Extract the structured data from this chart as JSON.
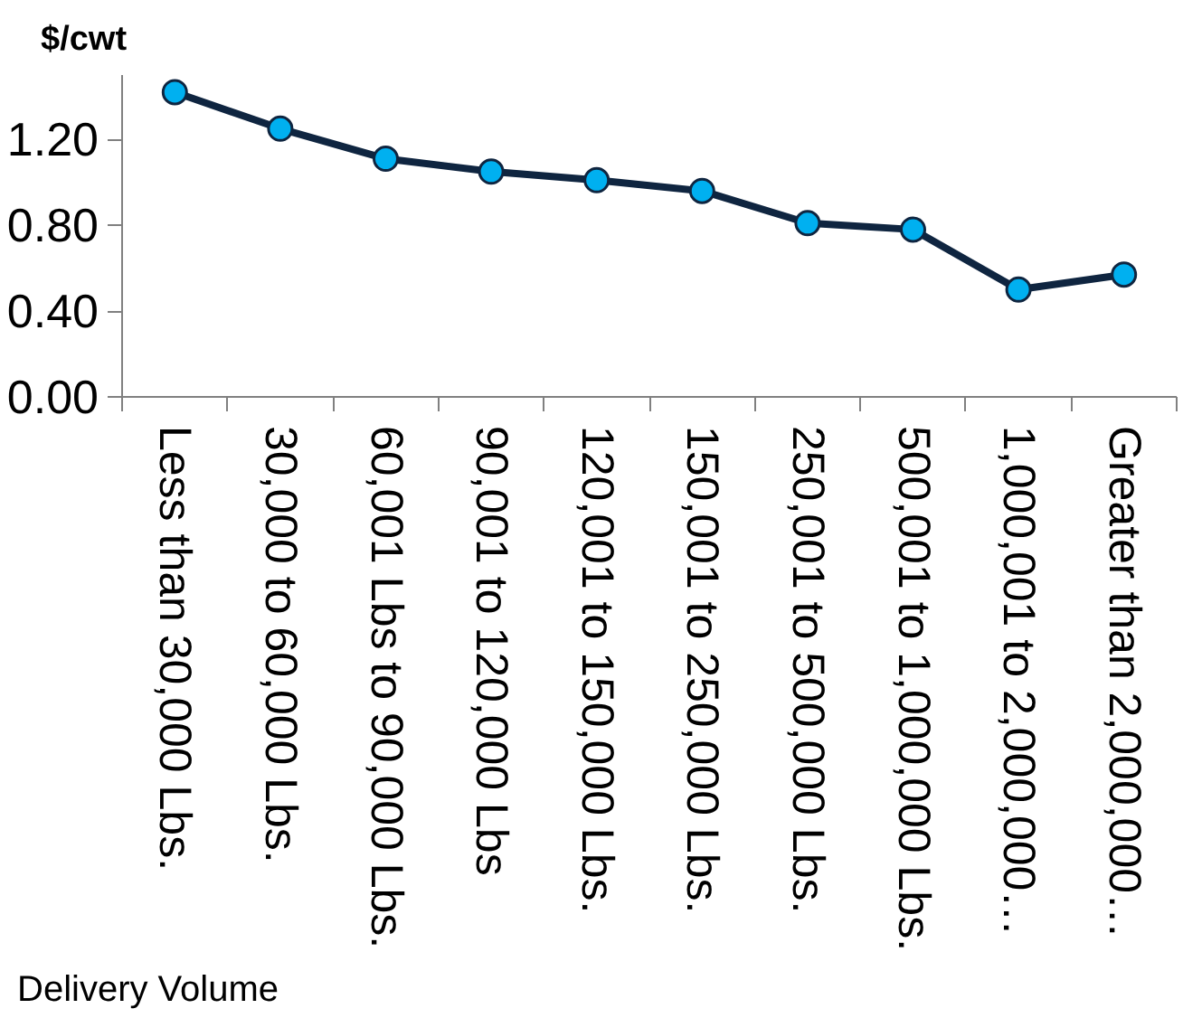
{
  "chart_data": {
    "type": "line",
    "ylabel": "$/cwt",
    "xlabel": "Delivery Volume",
    "categories": [
      "Less than 30,000 Lbs.",
      "30,000 to 60,000 Lbs.",
      "60,001 Lbs to 90,000 Lbs.",
      "90,001 to 120,000 Lbs",
      "120,001 to 150,000 Lbs.",
      "150,001 to 250,000 Lbs.",
      "250,001 to 500,000 Lbs.",
      "500,001 to 1,000,000 Lbs.",
      "1,000,001 to 2,000,000…",
      "Greater than 2,000,000…"
    ],
    "series": [
      {
        "color": "#0f2540",
        "values": [
          1.42,
          1.25,
          1.11,
          1.05,
          1.01,
          0.96,
          0.81,
          0.78,
          0.5,
          0.57
        ]
      }
    ],
    "marker": "circle",
    "line_style": "solid",
    "ylim": [
      0,
      1.5
    ],
    "yticks": [
      {
        "value": 0,
        "label": "0.00"
      },
      {
        "value": 0.4,
        "label": "0.40"
      },
      {
        "value": 0.8,
        "label": "0.80"
      },
      {
        "value": 1.2,
        "label": "1.20"
      }
    ],
    "grid": false
  }
}
